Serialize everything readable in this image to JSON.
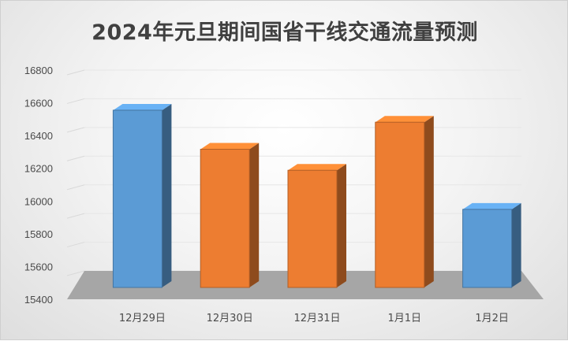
{
  "chart_data": {
    "type": "bar",
    "title": "2024年元旦期间国省干线交通流量预测",
    "categories": [
      "12月29日",
      "12月30日",
      "12月31日",
      "1月1日",
      "1月2日"
    ],
    "values": [
      16580,
      16320,
      16180,
      16500,
      15920
    ],
    "bar_colors": [
      "#5b9bd5",
      "#ed7d31",
      "#ed7d31",
      "#ed7d31",
      "#5b9bd5"
    ],
    "ylim": [
      15400,
      16800
    ],
    "yticks": [
      15400,
      15600,
      15800,
      16000,
      16200,
      16400,
      16600,
      16800
    ],
    "grid": true,
    "style": "3d-column",
    "xlabel": "",
    "ylabel": ""
  }
}
